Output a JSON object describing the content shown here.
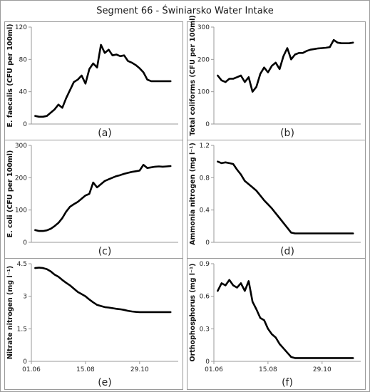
{
  "figure_title": "Segment 66 - Świniarsko Water Intake",
  "chart_data": [
    {
      "type": "line",
      "panel": "(a)",
      "ylabel": "E. faecalis (CFU per 100ml)",
      "ylim": [
        0,
        120
      ],
      "yticks": [
        0,
        40,
        80,
        120
      ],
      "xlim": [
        0,
        38
      ],
      "xticks": [],
      "xticklabels": [],
      "x": [
        1,
        2,
        3,
        4,
        5,
        6,
        7,
        8,
        9,
        10,
        11,
        12,
        13,
        14,
        15,
        16,
        17,
        18,
        19,
        20,
        21,
        22,
        23,
        24,
        25,
        26,
        27,
        28,
        29,
        30,
        31,
        32,
        33,
        34,
        35,
        36
      ],
      "y": [
        10,
        9,
        9,
        10,
        14,
        18,
        24,
        20,
        32,
        42,
        52,
        55,
        60,
        50,
        68,
        75,
        70,
        98,
        88,
        92,
        85,
        86,
        84,
        85,
        78,
        76,
        73,
        69,
        64,
        55,
        53,
        53,
        53,
        53,
        53,
        53
      ]
    },
    {
      "type": "line",
      "panel": "(b)",
      "ylabel": "Total coliforms (CFU per 100ml)",
      "ylim": [
        0,
        300
      ],
      "yticks": [
        0,
        100,
        200,
        300
      ],
      "xlim": [
        0,
        38
      ],
      "xticks": [],
      "xticklabels": [],
      "x": [
        1,
        2,
        3,
        4,
        5,
        6,
        7,
        8,
        9,
        10,
        11,
        12,
        13,
        14,
        15,
        16,
        17,
        18,
        19,
        20,
        21,
        22,
        23,
        24,
        25,
        26,
        27,
        28,
        29,
        30,
        31,
        32,
        33,
        34,
        35,
        36
      ],
      "y": [
        150,
        135,
        130,
        140,
        140,
        145,
        150,
        130,
        145,
        100,
        115,
        155,
        175,
        160,
        180,
        190,
        170,
        210,
        235,
        200,
        215,
        220,
        220,
        226,
        230,
        232,
        234,
        235,
        236,
        238,
        260,
        252,
        250,
        250,
        250,
        252
      ]
    },
    {
      "type": "line",
      "panel": "(c)",
      "ylabel": "E. coli (CFU per 100ml)",
      "ylim": [
        0,
        300
      ],
      "yticks": [
        0,
        100,
        200,
        300
      ],
      "xlim": [
        0,
        38
      ],
      "xticks": [],
      "xticklabels": [],
      "x": [
        1,
        2,
        3,
        4,
        5,
        6,
        7,
        8,
        9,
        10,
        11,
        12,
        13,
        14,
        15,
        16,
        17,
        18,
        19,
        20,
        21,
        22,
        23,
        24,
        25,
        26,
        27,
        28,
        29,
        30,
        31,
        32,
        33,
        34,
        35,
        36
      ],
      "y": [
        38,
        35,
        35,
        37,
        42,
        50,
        60,
        75,
        95,
        110,
        118,
        125,
        135,
        145,
        150,
        185,
        170,
        180,
        190,
        195,
        200,
        205,
        208,
        212,
        215,
        218,
        220,
        222,
        240,
        230,
        232,
        234,
        235,
        234,
        235,
        236
      ]
    },
    {
      "type": "line",
      "panel": "(d)",
      "ylabel": "Ammonia nitrogen (mg l⁻¹)",
      "ylim": [
        0,
        1.2
      ],
      "yticks": [
        0,
        0.4,
        0.8,
        1.2
      ],
      "xlim": [
        0,
        38
      ],
      "xticks": [],
      "xticklabels": [],
      "x": [
        1,
        2,
        3,
        4,
        5,
        6,
        7,
        8,
        9,
        10,
        11,
        12,
        13,
        14,
        15,
        16,
        17,
        18,
        19,
        20,
        21,
        22,
        23,
        24,
        25,
        26,
        27,
        28,
        29,
        30,
        31,
        32,
        33,
        34,
        35,
        36
      ],
      "y": [
        1.0,
        0.98,
        0.99,
        0.98,
        0.97,
        0.9,
        0.84,
        0.76,
        0.72,
        0.68,
        0.64,
        0.58,
        0.52,
        0.47,
        0.42,
        0.36,
        0.3,
        0.24,
        0.18,
        0.12,
        0.11,
        0.11,
        0.11,
        0.11,
        0.11,
        0.11,
        0.11,
        0.11,
        0.11,
        0.11,
        0.11,
        0.11,
        0.11,
        0.11,
        0.11,
        0.11
      ]
    },
    {
      "type": "line",
      "panel": "(e)",
      "ylabel": "Nitrate nitrogen (mg l⁻¹)",
      "ylim": [
        0,
        4.5
      ],
      "yticks": [
        0,
        1.5,
        3,
        4.5
      ],
      "xlim": [
        0,
        38
      ],
      "xticks": [
        0,
        14,
        28
      ],
      "xticklabels": [
        "01.06",
        "15.08",
        "29.10"
      ],
      "x": [
        1,
        2,
        3,
        4,
        5,
        6,
        7,
        8,
        9,
        10,
        11,
        12,
        13,
        14,
        15,
        16,
        17,
        18,
        19,
        20,
        21,
        22,
        23,
        24,
        25,
        26,
        27,
        28,
        29,
        30,
        31,
        32,
        33,
        34,
        35,
        36
      ],
      "y": [
        4.3,
        4.32,
        4.3,
        4.25,
        4.15,
        4.0,
        3.9,
        3.75,
        3.62,
        3.5,
        3.35,
        3.2,
        3.1,
        3.0,
        2.85,
        2.72,
        2.6,
        2.55,
        2.5,
        2.48,
        2.45,
        2.42,
        2.4,
        2.37,
        2.33,
        2.3,
        2.28,
        2.27,
        2.27,
        2.27,
        2.27,
        2.27,
        2.27,
        2.27,
        2.27,
        2.27
      ]
    },
    {
      "type": "line",
      "panel": "(f)",
      "ylabel": "Orthophosphorus (mg l⁻¹)",
      "ylim": [
        0,
        0.9
      ],
      "yticks": [
        0,
        0.3,
        0.6,
        0.9
      ],
      "xlim": [
        0,
        38
      ],
      "xticks": [
        0,
        14,
        28
      ],
      "xticklabels": [
        "01.06",
        "15.08",
        "29.10"
      ],
      "x": [
        1,
        2,
        3,
        4,
        5,
        6,
        7,
        8,
        9,
        10,
        11,
        12,
        13,
        14,
        15,
        16,
        17,
        18,
        19,
        20,
        21,
        22,
        23,
        24,
        25,
        26,
        27,
        28,
        29,
        30,
        31,
        32,
        33,
        34,
        35,
        36
      ],
      "y": [
        0.65,
        0.72,
        0.7,
        0.75,
        0.7,
        0.68,
        0.72,
        0.65,
        0.74,
        0.55,
        0.48,
        0.4,
        0.38,
        0.3,
        0.25,
        0.22,
        0.16,
        0.12,
        0.08,
        0.04,
        0.03,
        0.03,
        0.03,
        0.03,
        0.03,
        0.03,
        0.03,
        0.03,
        0.03,
        0.03,
        0.03,
        0.03,
        0.03,
        0.03,
        0.03,
        0.03
      ]
    }
  ]
}
